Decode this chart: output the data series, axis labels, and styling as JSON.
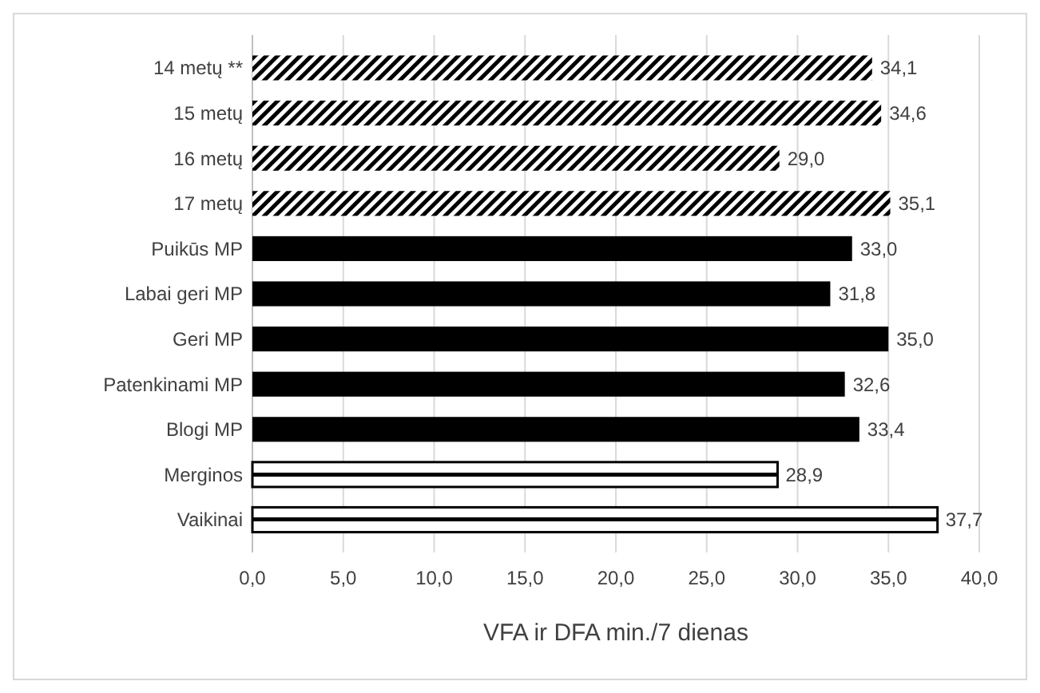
{
  "chart_data": {
    "type": "bar",
    "orientation": "horizontal",
    "xlabel": "VFA ir DFA min./7 dienas",
    "categories": [
      "14 metų **",
      "15 metų",
      "16 metų",
      "17 metų",
      "Puikūs MP",
      "Labai geri MP",
      "Geri MP",
      "Patenkinami MP",
      "Blogi MP",
      "Merginos",
      "Vaikinai"
    ],
    "series": [
      {
        "color": "#000000",
        "values": [
          34.1,
          34.6,
          29.0,
          35.1,
          null,
          null,
          null,
          null,
          null,
          null,
          null
        ],
        "value_labels": [
          "34,1",
          "34,6",
          "29,0",
          "35,1",
          null,
          null,
          null,
          null,
          null,
          null,
          null
        ]
      },
      {
        "color": "#000000",
        "values": [
          null,
          null,
          null,
          null,
          33.0,
          31.8,
          35.0,
          32.6,
          33.4,
          null,
          null
        ],
        "value_labels": [
          null,
          null,
          null,
          null,
          "33,0",
          "31,8",
          "35,0",
          "32,6",
          "33,4",
          null,
          null
        ]
      },
      {
        "color": "#000000",
        "values": [
          null,
          null,
          null,
          null,
          null,
          null,
          null,
          null,
          null,
          28.9,
          37.7
        ],
        "value_labels": [
          null,
          null,
          null,
          null,
          null,
          null,
          null,
          null,
          null,
          "28,9",
          "37,7"
        ]
      }
    ],
    "xlim": [
      0,
      40
    ],
    "xticks": [
      {
        "value": 0,
        "label": "0,0"
      },
      {
        "value": 5,
        "label": "5,0"
      },
      {
        "value": 10,
        "label": "10,0"
      },
      {
        "value": 15,
        "label": "15,0"
      },
      {
        "value": 20,
        "label": "20,0"
      },
      {
        "value": 25,
        "label": "25,0"
      },
      {
        "value": 30,
        "label": "30,0"
      },
      {
        "value": 35,
        "label": "35,0"
      },
      {
        "value": 40,
        "label": "40,0"
      }
    ],
    "grid": "x"
  }
}
